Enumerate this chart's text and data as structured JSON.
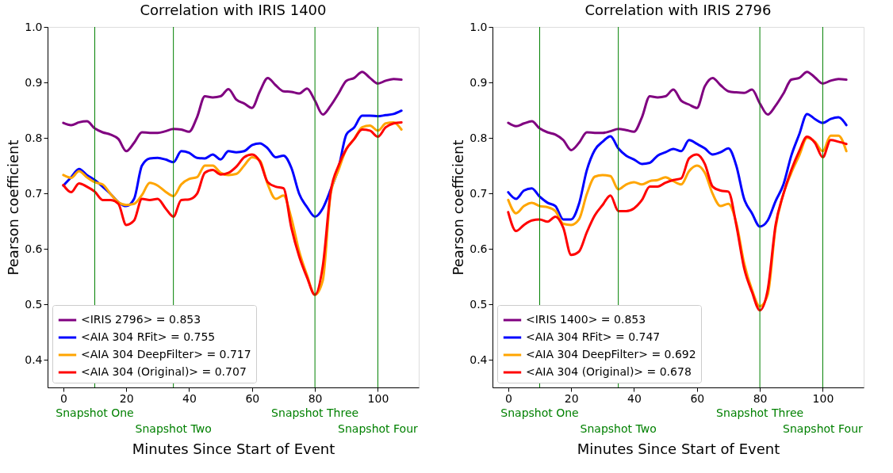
{
  "chart_data": [
    {
      "type": "line",
      "title": "Correlation with IRIS 1400",
      "xlabel": "Minutes Since Start of Event",
      "ylabel": "Pearson coefficient",
      "x": [
        0,
        2.5,
        5,
        7.5,
        10,
        12.5,
        15,
        17.5,
        20,
        22.5,
        25,
        27.5,
        30,
        32.5,
        35,
        37.5,
        40,
        42.5,
        45,
        47.5,
        50,
        52.5,
        55,
        57.5,
        60,
        62.5,
        65,
        67.5,
        70,
        72.5,
        75,
        77.5,
        80,
        82.5,
        85,
        87.5,
        90,
        92.5,
        95,
        97.5,
        100,
        102.5,
        105,
        107.5
      ],
      "series": [
        {
          "name": "<IRIS 2796> = 0.853",
          "color": "#800080",
          "values": [
            0.827,
            0.823,
            0.828,
            0.83,
            0.817,
            0.81,
            0.806,
            0.798,
            0.776,
            0.791,
            0.81,
            0.809,
            0.809,
            0.812,
            0.816,
            0.815,
            0.811,
            0.837,
            0.875,
            0.873,
            0.875,
            0.888,
            0.869,
            0.862,
            0.854,
            0.884,
            0.908,
            0.895,
            0.884,
            0.883,
            0.88,
            0.889,
            0.867,
            0.842,
            0.858,
            0.88,
            0.903,
            0.908,
            0.919,
            0.908,
            0.898,
            0.903,
            0.906,
            0.905
          ]
        },
        {
          "name": "<AIA 304 RFit> = 0.755",
          "color": "#0000ff",
          "values": [
            0.714,
            0.729,
            0.744,
            0.733,
            0.724,
            0.712,
            0.699,
            0.684,
            0.677,
            0.69,
            0.75,
            0.763,
            0.764,
            0.761,
            0.756,
            0.776,
            0.773,
            0.764,
            0.763,
            0.77,
            0.761,
            0.776,
            0.774,
            0.776,
            0.787,
            0.79,
            0.781,
            0.765,
            0.768,
            0.746,
            0.699,
            0.675,
            0.658,
            0.673,
            0.707,
            0.746,
            0.806,
            0.819,
            0.84,
            0.84,
            0.839,
            0.841,
            0.843,
            0.849
          ]
        },
        {
          "name": "<AIA 304 DeepFilter> = 0.717",
          "color": "#ffa500",
          "values": [
            0.733,
            0.728,
            0.74,
            0.729,
            0.72,
            0.716,
            0.699,
            0.684,
            0.679,
            0.681,
            0.697,
            0.719,
            0.714,
            0.703,
            0.695,
            0.716,
            0.726,
            0.729,
            0.75,
            0.75,
            0.737,
            0.733,
            0.735,
            0.75,
            0.765,
            0.759,
            0.716,
            0.69,
            0.696,
            0.655,
            0.595,
            0.552,
            0.517,
            0.543,
            0.699,
            0.742,
            0.78,
            0.798,
            0.819,
            0.822,
            0.813,
            0.826,
            0.828,
            0.815
          ]
        },
        {
          "name": "<AIA 304 (Original)> = 0.707",
          "color": "#ff0000",
          "values": [
            0.715,
            0.702,
            0.718,
            0.712,
            0.703,
            0.688,
            0.688,
            0.681,
            0.643,
            0.651,
            0.69,
            0.688,
            0.69,
            0.673,
            0.658,
            0.688,
            0.689,
            0.699,
            0.737,
            0.742,
            0.734,
            0.737,
            0.748,
            0.765,
            0.77,
            0.757,
            0.72,
            0.712,
            0.709,
            0.638,
            0.586,
            0.548,
            0.517,
            0.569,
            0.703,
            0.75,
            0.78,
            0.798,
            0.815,
            0.813,
            0.802,
            0.819,
            0.826,
            0.828
          ]
        }
      ],
      "xlim": [
        -5,
        113
      ],
      "xticks": [
        0,
        20,
        40,
        60,
        80,
        100
      ],
      "ylim": [
        0.35,
        1.0
      ],
      "yticks": [
        0.4,
        0.5,
        0.6,
        0.7,
        0.8,
        0.9,
        {
          "value": 1.0,
          "label": "1.0"
        }
      ],
      "ref_lines": [
        {
          "axis": "x",
          "value": 10,
          "label": "Snapshot One",
          "color": "#008000"
        },
        {
          "axis": "x",
          "value": 35,
          "label": "Snapshot Two",
          "color": "#008000"
        },
        {
          "axis": "x",
          "value": 80,
          "label": "Snapshot Three",
          "color": "#008000"
        },
        {
          "axis": "x",
          "value": 100,
          "label": "Snapshot Four",
          "color": "#008000"
        }
      ],
      "legend": "bottom left"
    },
    {
      "type": "line",
      "title": "Correlation with IRIS 2796",
      "xlabel": "Minutes Since Start of Event",
      "ylabel": "Pearson coefficient",
      "x": [
        0,
        2.5,
        5,
        7.5,
        10,
        12.5,
        15,
        17.5,
        20,
        22.5,
        25,
        27.5,
        30,
        32.5,
        35,
        37.5,
        40,
        42.5,
        45,
        47.5,
        50,
        52.5,
        55,
        57.5,
        60,
        62.5,
        65,
        67.5,
        70,
        72.5,
        75,
        77.5,
        80,
        82.5,
        85,
        87.5,
        90,
        92.5,
        95,
        97.5,
        100,
        102.5,
        105,
        107.5
      ],
      "series": [
        {
          "name": "<IRIS 1400> = 0.853",
          "color": "#800080",
          "values": [
            0.827,
            0.821,
            0.826,
            0.83,
            0.817,
            0.81,
            0.806,
            0.796,
            0.778,
            0.791,
            0.81,
            0.809,
            0.809,
            0.812,
            0.816,
            0.814,
            0.811,
            0.837,
            0.875,
            0.873,
            0.875,
            0.887,
            0.867,
            0.86,
            0.854,
            0.893,
            0.908,
            0.895,
            0.884,
            0.882,
            0.881,
            0.887,
            0.862,
            0.842,
            0.858,
            0.88,
            0.905,
            0.908,
            0.919,
            0.909,
            0.898,
            0.903,
            0.906,
            0.905
          ]
        },
        {
          "name": "<AIA 304 RFit> = 0.747",
          "color": "#0000ff",
          "values": [
            0.702,
            0.69,
            0.705,
            0.709,
            0.694,
            0.683,
            0.677,
            0.653,
            0.653,
            0.681,
            0.742,
            0.778,
            0.793,
            0.803,
            0.781,
            0.768,
            0.761,
            0.753,
            0.755,
            0.768,
            0.774,
            0.78,
            0.776,
            0.796,
            0.789,
            0.781,
            0.77,
            0.774,
            0.781,
            0.75,
            0.69,
            0.664,
            0.64,
            0.651,
            0.686,
            0.716,
            0.768,
            0.806,
            0.843,
            0.834,
            0.827,
            0.834,
            0.837,
            0.823
          ]
        },
        {
          "name": "<AIA 304 DeepFilter> = 0.692",
          "color": "#ffa500",
          "values": [
            0.688,
            0.664,
            0.677,
            0.683,
            0.677,
            0.675,
            0.668,
            0.645,
            0.643,
            0.653,
            0.699,
            0.73,
            0.733,
            0.731,
            0.707,
            0.716,
            0.72,
            0.716,
            0.722,
            0.724,
            0.729,
            0.722,
            0.716,
            0.74,
            0.75,
            0.737,
            0.699,
            0.677,
            0.681,
            0.647,
            0.574,
            0.526,
            0.496,
            0.517,
            0.638,
            0.699,
            0.737,
            0.768,
            0.8,
            0.793,
            0.776,
            0.804,
            0.804,
            0.776
          ]
        },
        {
          "name": "<AIA 304 (Original)> = 0.678",
          "color": "#ff0000",
          "values": [
            0.666,
            0.632,
            0.643,
            0.651,
            0.653,
            0.649,
            0.658,
            0.638,
            0.589,
            0.595,
            0.63,
            0.66,
            0.679,
            0.696,
            0.668,
            0.668,
            0.673,
            0.688,
            0.712,
            0.712,
            0.719,
            0.724,
            0.727,
            0.763,
            0.77,
            0.753,
            0.712,
            0.705,
            0.703,
            0.643,
            0.565,
            0.522,
            0.489,
            0.526,
            0.643,
            0.699,
            0.742,
            0.776,
            0.802,
            0.791,
            0.765,
            0.796,
            0.793,
            0.789
          ]
        }
      ],
      "xlim": [
        -5,
        113
      ],
      "xticks": [
        0,
        20,
        40,
        60,
        80,
        100
      ],
      "ylim": [
        0.35,
        1.0
      ],
      "yticks": [
        0.4,
        0.5,
        0.6,
        0.7,
        0.8,
        0.9,
        {
          "value": 1.0,
          "label": "1.0"
        }
      ],
      "ref_lines": [
        {
          "axis": "x",
          "value": 10,
          "label": "Snapshot One",
          "color": "#008000"
        },
        {
          "axis": "x",
          "value": 35,
          "label": "Snapshot Two",
          "color": "#008000"
        },
        {
          "axis": "x",
          "value": 80,
          "label": "Snapshot Three",
          "color": "#008000"
        },
        {
          "axis": "x",
          "value": 100,
          "label": "Snapshot Four",
          "color": "#008000"
        }
      ],
      "legend": "bottom left"
    }
  ]
}
